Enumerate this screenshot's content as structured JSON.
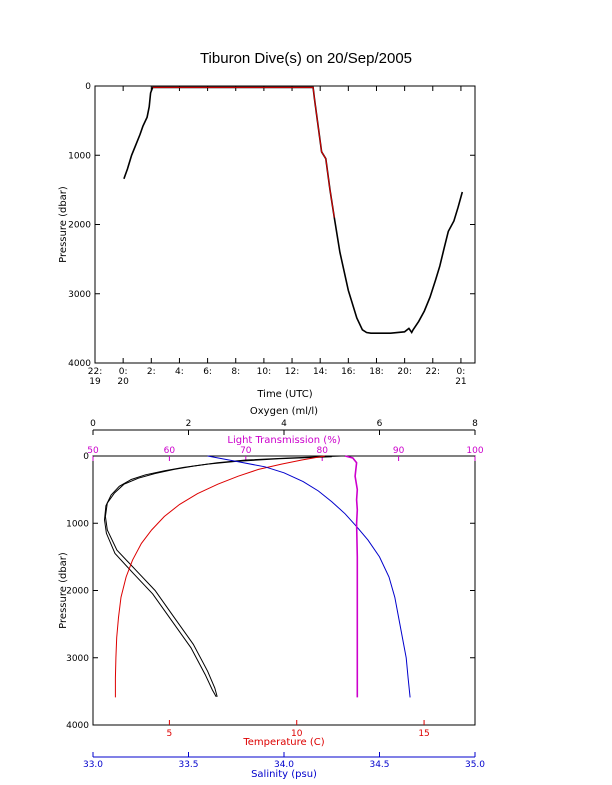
{
  "title": "Tiburon Dive(s) on 20/Sep/2005",
  "colors": {
    "axis": "#000000",
    "oxygen": "#000000",
    "light": "#cc00cc",
    "temperature": "#dd0000",
    "salinity": "#0000cc",
    "dive_track": "#000000",
    "dive_overlay": "#dd0000"
  },
  "chart_data": [
    {
      "type": "line",
      "title": "Tiburon Dive(s) on 20/Sep/2005",
      "xlabel": "Time (UTC)",
      "ylabel": "Pressure (dbar)",
      "x_unit": "hours since 22:00 on 19/Sep",
      "xlim": [
        0,
        27
      ],
      "ylim": [
        4000,
        0
      ],
      "x_ticks": [
        {
          "x": 0,
          "label": "22:",
          "label2": "19"
        },
        {
          "x": 2,
          "label": "0:",
          "label2": "20"
        },
        {
          "x": 4,
          "label": "2:"
        },
        {
          "x": 6,
          "label": "4:"
        },
        {
          "x": 8,
          "label": "6:"
        },
        {
          "x": 10,
          "label": "8:"
        },
        {
          "x": 12,
          "label": "10:"
        },
        {
          "x": 14,
          "label": "12:"
        },
        {
          "x": 16,
          "label": "14:"
        },
        {
          "x": 18,
          "label": "16:"
        },
        {
          "x": 20,
          "label": "18:"
        },
        {
          "x": 22,
          "label": "20:"
        },
        {
          "x": 24,
          "label": "22:"
        },
        {
          "x": 26,
          "label": "0:",
          "label2": "21"
        }
      ],
      "y_ticks": [
        0,
        1000,
        2000,
        3000,
        4000
      ],
      "series": [
        {
          "key": "dive",
          "x": [
            2.05,
            2.3,
            2.6,
            2.9,
            3.2,
            3.4,
            3.7,
            3.85,
            3.95,
            4.1,
            5,
            8,
            11,
            14,
            15.5,
            15.6,
            15.8,
            16.1,
            16.4,
            16.7,
            17.0,
            17.4,
            18.0,
            18.6,
            19.0,
            19.3,
            19.6,
            20,
            21,
            22,
            22.3,
            22.5,
            22.6,
            23.0,
            23.4,
            23.8,
            24.2,
            24.5,
            24.8,
            25.1,
            25.5,
            25.8,
            26.1
          ],
          "y": [
            1340,
            1200,
            1000,
            850,
            700,
            580,
            450,
            300,
            100,
            20,
            20,
            20,
            20,
            20,
            20,
            200,
            500,
            950,
            1050,
            1500,
            1900,
            2400,
            2950,
            3350,
            3520,
            3560,
            3570,
            3570,
            3570,
            3550,
            3500,
            3560,
            3520,
            3400,
            3250,
            3050,
            2800,
            2600,
            2350,
            2100,
            1950,
            1750,
            1530
          ]
        }
      ]
    },
    {
      "type": "line",
      "ylabel": "Pressure (dbar)",
      "ylim": [
        4000,
        0
      ],
      "y_ticks": [
        0,
        1000,
        2000,
        3000,
        4000
      ],
      "axes": {
        "oxygen": {
          "label": "Oxygen (ml/l)",
          "range": [
            0,
            8
          ],
          "ticks": [
            0,
            2,
            4,
            6,
            8
          ]
        },
        "light": {
          "label": "Light Transmission (%)",
          "range": [
            50,
            100
          ],
          "ticks": [
            50,
            60,
            70,
            80,
            90,
            100
          ]
        },
        "temperature": {
          "label": "Temperature (C)",
          "range": [
            2,
            17
          ],
          "ticks": [
            5,
            10,
            15
          ]
        },
        "salinity": {
          "label": "Salinity (psu)",
          "range": [
            33.0,
            35.0
          ],
          "ticks": [
            "33.0",
            "33.5",
            "34.0",
            "34.5",
            "35.0"
          ]
        }
      },
      "series": [
        {
          "key": "oxygen",
          "axis": "oxygen",
          "x": [
            5.2,
            4.1,
            3.2,
            2.6,
            2.1,
            1.7,
            1.3,
            0.95,
            0.65,
            0.45,
            0.3,
            0.26,
            0.3,
            0.5,
            0.9,
            1.3,
            1.7,
            2.1,
            2.4,
            2.55,
            2.6
          ],
          "y": [
            0,
            30,
            60,
            100,
            150,
            200,
            260,
            330,
            420,
            550,
            700,
            900,
            1100,
            1400,
            1700,
            2000,
            2400,
            2800,
            3200,
            3450,
            3580
          ]
        },
        {
          "key": "oxygen_2",
          "axis": "oxygen",
          "x": [
            5.0,
            3.9,
            3.0,
            2.4,
            1.9,
            1.5,
            1.1,
            0.8,
            0.55,
            0.38,
            0.27,
            0.24,
            0.28,
            0.46,
            0.85,
            1.25,
            1.65,
            2.05,
            2.35,
            2.5,
            2.58
          ],
          "y": [
            10,
            40,
            80,
            120,
            170,
            220,
            280,
            350,
            450,
            580,
            740,
            950,
            1150,
            1450,
            1750,
            2050,
            2450,
            2850,
            3250,
            3480,
            3580
          ]
        },
        {
          "key": "temperature",
          "axis": "temperature",
          "x": [
            11.1,
            10.2,
            9.4,
            8.5,
            7.7,
            6.9,
            6.1,
            5.4,
            4.8,
            4.3,
            3.9,
            3.55,
            3.3,
            3.1,
            3.0,
            2.93,
            2.9,
            2.88,
            2.88
          ],
          "y": [
            0,
            60,
            120,
            200,
            300,
            420,
            560,
            720,
            900,
            1100,
            1300,
            1550,
            1800,
            2100,
            2400,
            2700,
            3000,
            3300,
            3590
          ]
        },
        {
          "key": "salinity",
          "axis": "salinity",
          "x": [
            33.6,
            33.75,
            33.9,
            34.0,
            34.1,
            34.18,
            34.25,
            34.32,
            34.38,
            34.44,
            34.5,
            34.55,
            34.58,
            34.6,
            34.62,
            34.64,
            34.65,
            34.66
          ],
          "y": [
            0,
            80,
            160,
            250,
            380,
            520,
            680,
            860,
            1050,
            1250,
            1500,
            1800,
            2100,
            2400,
            2700,
            3000,
            3300,
            3590
          ]
        },
        {
          "key": "light",
          "axis": "light",
          "x": [
            83,
            84,
            84.5,
            84.3,
            84.6,
            84.5,
            84.6,
            84.5,
            84.6,
            84.6,
            84.6,
            84.6,
            84.6,
            84.6
          ],
          "y": [
            0,
            30,
            100,
            300,
            500,
            650,
            800,
            1000,
            1500,
            2000,
            2500,
            3000,
            3400,
            3590
          ]
        }
      ]
    }
  ]
}
